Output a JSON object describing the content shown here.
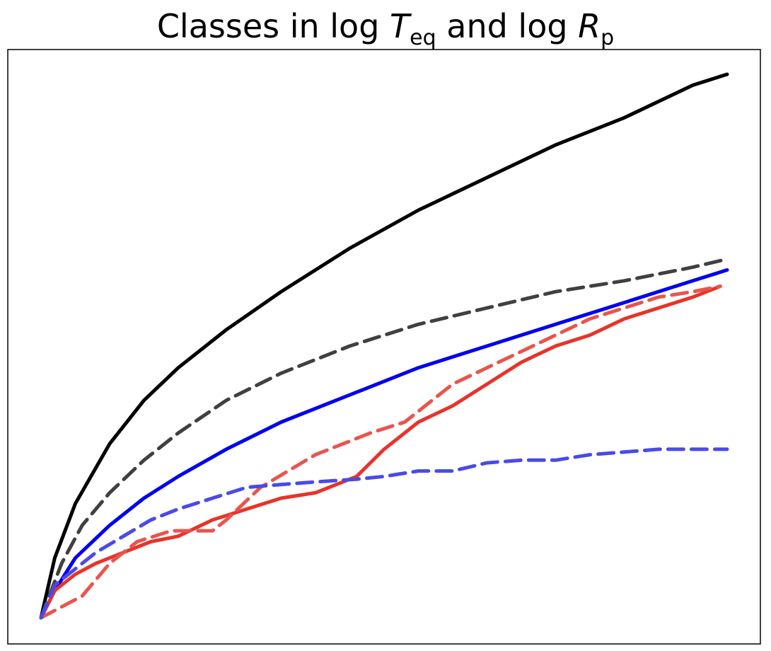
{
  "chart_data": {
    "type": "line",
    "title": {
      "prefix": "Classes in log ",
      "t_symbol": "T",
      "t_sub": "eq",
      "middle": " and log ",
      "r_symbol": "R",
      "r_sub": "p"
    },
    "xlabel": "",
    "ylabel": "",
    "xlim": [
      0,
      1
    ],
    "ylim": [
      0,
      1
    ],
    "ticks": "none",
    "grid": false,
    "legend": "none",
    "series": [
      {
        "color": "#000000",
        "dash": "solid",
        "x": [
          0,
          0.02,
          0.05,
          0.1,
          0.15,
          0.2,
          0.27,
          0.35,
          0.45,
          0.55,
          0.65,
          0.75,
          0.85,
          0.95,
          1.0
        ],
        "y": [
          0,
          0.11,
          0.21,
          0.32,
          0.4,
          0.46,
          0.53,
          0.6,
          0.68,
          0.75,
          0.81,
          0.87,
          0.92,
          0.98,
          1.0
        ]
      },
      {
        "color": "#404040",
        "dash": "dashed",
        "x": [
          0,
          0.03,
          0.06,
          0.1,
          0.15,
          0.2,
          0.27,
          0.35,
          0.45,
          0.55,
          0.65,
          0.75,
          0.85,
          0.95,
          1.0
        ],
        "y": [
          0,
          0.1,
          0.17,
          0.23,
          0.29,
          0.34,
          0.4,
          0.45,
          0.5,
          0.54,
          0.57,
          0.6,
          0.62,
          0.645,
          0.66
        ]
      },
      {
        "color": "#0000ee",
        "dash": "solid",
        "x": [
          0,
          0.02,
          0.05,
          0.1,
          0.15,
          0.2,
          0.27,
          0.35,
          0.45,
          0.55,
          0.65,
          0.75,
          0.85,
          0.95,
          1.0
        ],
        "y": [
          0,
          0.05,
          0.11,
          0.17,
          0.22,
          0.26,
          0.31,
          0.36,
          0.41,
          0.46,
          0.5,
          0.54,
          0.58,
          0.62,
          0.64
        ]
      },
      {
        "color": "#e8332a",
        "dash": "solid",
        "x": [
          0,
          0.02,
          0.05,
          0.08,
          0.12,
          0.16,
          0.2,
          0.25,
          0.3,
          0.35,
          0.4,
          0.46,
          0.5,
          0.55,
          0.6,
          0.65,
          0.7,
          0.75,
          0.8,
          0.85,
          0.9,
          0.95,
          0.99
        ],
        "y": [
          0,
          0.05,
          0.08,
          0.1,
          0.12,
          0.14,
          0.15,
          0.18,
          0.2,
          0.22,
          0.23,
          0.26,
          0.31,
          0.36,
          0.39,
          0.43,
          0.47,
          0.5,
          0.52,
          0.55,
          0.57,
          0.59,
          0.61
        ]
      },
      {
        "color": "#e8554e",
        "dash": "dashed",
        "x": [
          0,
          0.03,
          0.06,
          0.1,
          0.14,
          0.19,
          0.25,
          0.27,
          0.32,
          0.4,
          0.48,
          0.53,
          0.56,
          0.6,
          0.65,
          0.7,
          0.75,
          0.8,
          0.85,
          0.9,
          0.95,
          0.99
        ],
        "y": [
          0,
          0.02,
          0.04,
          0.1,
          0.14,
          0.16,
          0.16,
          0.18,
          0.24,
          0.3,
          0.34,
          0.36,
          0.39,
          0.43,
          0.46,
          0.49,
          0.52,
          0.55,
          0.57,
          0.59,
          0.6,
          0.61
        ]
      },
      {
        "color": "#4a4ae8",
        "dash": "dashed",
        "x": [
          0,
          0.02,
          0.05,
          0.08,
          0.12,
          0.16,
          0.2,
          0.25,
          0.3,
          0.35,
          0.4,
          0.46,
          0.5,
          0.55,
          0.6,
          0.65,
          0.7,
          0.75,
          0.8,
          0.85,
          0.9,
          0.95,
          1.0
        ],
        "y": [
          0,
          0.06,
          0.09,
          0.12,
          0.15,
          0.18,
          0.2,
          0.22,
          0.24,
          0.245,
          0.25,
          0.255,
          0.26,
          0.27,
          0.27,
          0.285,
          0.29,
          0.29,
          0.3,
          0.305,
          0.31,
          0.31,
          0.31
        ]
      }
    ]
  }
}
